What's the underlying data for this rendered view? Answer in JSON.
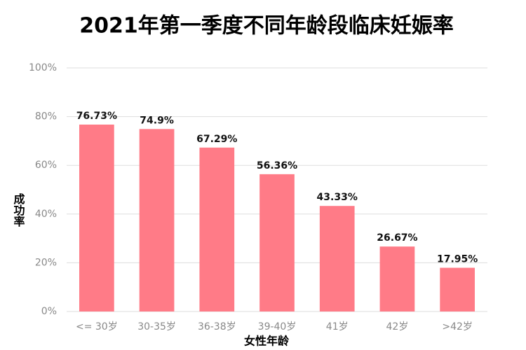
{
  "chart_data": {
    "type": "bar",
    "title": "2021年第一季度不同年龄段临床妊娠率",
    "x_label": "女性年龄",
    "y_label": "成功率",
    "categories": [
      "<= 30岁",
      "30-35岁",
      "36-38岁",
      "39-40岁",
      "41岁",
      "42岁",
      ">42岁"
    ],
    "values": [
      76.73,
      74.9,
      67.29,
      56.36,
      43.33,
      26.67,
      17.95
    ],
    "value_labels": [
      "76.73%",
      "74.9%",
      "67.29%",
      "56.36%",
      "43.33%",
      "26.67%",
      "17.95%"
    ],
    "color": "#ff7b87",
    "ylim": [
      0,
      100
    ],
    "yticks": [
      {
        "value": 0,
        "label": "0%"
      },
      {
        "value": 20,
        "label": "20%"
      },
      {
        "value": 40,
        "label": "40%"
      },
      {
        "value": 60,
        "label": "60%"
      },
      {
        "value": 80,
        "label": "80%"
      },
      {
        "value": 100,
        "label": "100%"
      }
    ],
    "grid": true
  }
}
